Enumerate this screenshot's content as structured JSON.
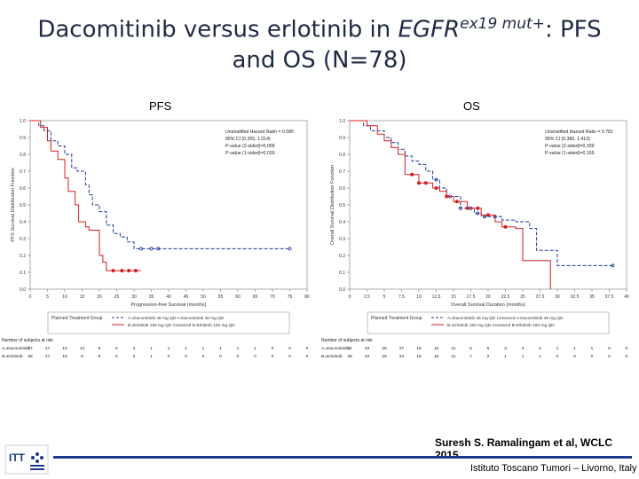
{
  "slide": {
    "title_part1": "Dacomitinib versus erlotinib in ",
    "title_gene": "EGFR",
    "title_sup": "ex19 mut+",
    "title_part2": ": PFS",
    "title_line2": "and OS (N=78)",
    "citation": "Suresh S. Ramalingam et al, WCLC 2015",
    "footer": "Istituto Toscano Tumori – Livorno, Italy",
    "colors": {
      "title": "#1f2a44",
      "dacomitinib": "#1f3a9a",
      "erlotinib": "#d42020",
      "footer_line": "#1f3a8a"
    }
  },
  "chart_data": [
    {
      "type": "line",
      "panel_label": "PFS",
      "title": "PFS",
      "xlabel": "Progression-free Survival (months)",
      "ylabel": "PFS Survival Distribution Function",
      "xlim": [
        0,
        80
      ],
      "ylim": [
        0,
        1.0
      ],
      "xticks": [
        "0",
        "5",
        "10",
        "15",
        "20",
        "25",
        "30",
        "35",
        "40",
        "45",
        "50",
        "55",
        "60",
        "65",
        "70",
        "75",
        "80"
      ],
      "yticks": [
        "0.0",
        "0.1",
        "0.2",
        "0.3",
        "0.4",
        "0.5",
        "0.6",
        "0.7",
        "0.8",
        "0.9",
        "1.0"
      ],
      "stats": [
        "Unstratified Hazard Ratio = 0.585",
        "95% CI (0.355, 1.014)",
        "P-value (2-sided)=0.058",
        "P-value (1-sided)=0.029"
      ],
      "legend_title": "Planned Treatment Group",
      "legend_lines": [
        "A=Dacomitinib 45 mg QD    A-Dacomitinib 45 mg QD",
        "B=Erlotinib 150 mg QD    Censored B-Erlotinib 150 mg QD"
      ],
      "risk_title": "Number of subjects at risk",
      "series": [
        {
          "name": "A=Dacomitinib",
          "style": "dashed",
          "x": [
            0,
            2.5,
            4,
            6,
            8,
            10,
            12,
            13.5,
            16,
            17,
            18,
            20,
            22,
            24,
            26,
            28,
            30,
            32,
            75
          ],
          "y": [
            1.0,
            0.97,
            0.94,
            0.88,
            0.85,
            0.8,
            0.72,
            0.7,
            0.62,
            0.56,
            0.5,
            0.46,
            0.38,
            0.33,
            0.31,
            0.28,
            0.24,
            0.24,
            0.24
          ],
          "censored_x": [
            32,
            35,
            37,
            75
          ],
          "risk": [
            "37",
            "27",
            "10",
            "14",
            "9",
            "5",
            "3",
            "1",
            "1",
            "1",
            "1",
            "1",
            "1",
            "1",
            "0",
            "0",
            "0"
          ]
        },
        {
          "name": "B=Erlotinib",
          "style": "solid",
          "x": [
            0,
            3,
            5,
            6,
            8,
            10,
            11,
            13,
            14,
            16,
            17,
            20,
            21,
            22,
            32
          ],
          "y": [
            1.0,
            0.96,
            0.88,
            0.82,
            0.77,
            0.66,
            0.58,
            0.5,
            0.4,
            0.37,
            0.35,
            0.2,
            0.16,
            0.11,
            0.11
          ],
          "censored_x": [
            24,
            26.5,
            28.5,
            30.5
          ],
          "risk": [
            "38",
            "27",
            "18",
            "9",
            "9",
            "5",
            "2",
            "1",
            "0",
            "0",
            "0",
            "0",
            "0",
            "0",
            "0",
            "0",
            "0"
          ]
        }
      ]
    },
    {
      "type": "line",
      "panel_label": "OS",
      "title": "OS",
      "xlabel": "Overall Survival Duration (months)",
      "ylabel": "Overall Survival Distribution Function",
      "xlim": [
        0,
        40
      ],
      "ylim": [
        0,
        1.0
      ],
      "xticks": [
        "0",
        "2.5",
        "5",
        "7.5",
        "10",
        "12.5",
        "15",
        "17.5",
        "20",
        "22.5",
        "25",
        "27.5",
        "30",
        "32.5",
        "35",
        "37.5",
        "40"
      ],
      "yticks": [
        "0.0",
        "0.1",
        "0.2",
        "0.3",
        "0.4",
        "0.5",
        "0.6",
        "0.7",
        "0.8",
        "0.9",
        "1.0"
      ],
      "stats": [
        "Unstratified Hazard Ratio = 0.781",
        "95% CI (0.386, 1.413)",
        "P-value (2-sided)=0.339",
        "P-value (1-sided)=0.169"
      ],
      "legend_title": "Planned Treatment Group",
      "legend_lines": [
        "A=Dacomitinib 45 mg QD    Censored A-Dacomitinib 45 mg QD",
        "B=Erlotinib 150 mg QD    Censored B-Erlotinib 150 mg QD"
      ],
      "risk_title": "Number of subjects at risk",
      "series": [
        {
          "name": "A=Dacomitinib",
          "style": "dashed",
          "x": [
            0,
            2,
            3,
            5,
            6,
            7,
            8,
            9,
            10,
            11,
            12,
            13,
            14,
            16,
            18,
            19,
            22,
            24,
            26,
            27,
            30,
            31,
            38
          ],
          "y": [
            1.0,
            0.97,
            0.94,
            0.9,
            0.87,
            0.83,
            0.79,
            0.76,
            0.74,
            0.7,
            0.65,
            0.6,
            0.55,
            0.48,
            0.45,
            0.43,
            0.41,
            0.4,
            0.36,
            0.23,
            0.14,
            0.14,
            0.14
          ],
          "censored_x": [
            12.5,
            14.5,
            16,
            17.5,
            18.5,
            19.5,
            21,
            38
          ],
          "risk": [
            "32",
            "33",
            "29",
            "27",
            "18",
            "15",
            "11",
            "5",
            "5",
            "3",
            "3",
            "2",
            "1",
            "1",
            "1",
            "0",
            "0"
          ]
        },
        {
          "name": "B=Erlotinib",
          "style": "solid",
          "x": [
            0,
            2.5,
            4,
            5,
            6,
            7,
            8,
            10,
            12,
            13,
            14,
            15,
            17,
            19,
            21,
            22,
            23,
            24,
            25,
            26,
            27,
            28,
            29
          ],
          "y": [
            1.0,
            0.97,
            0.92,
            0.88,
            0.84,
            0.8,
            0.68,
            0.63,
            0.6,
            0.58,
            0.55,
            0.52,
            0.48,
            0.44,
            0.4,
            0.37,
            0.37,
            0.36,
            0.17,
            0.17,
            0.17,
            0.17,
            0.0
          ],
          "censored_x": [
            9,
            10,
            11,
            12.5,
            14,
            15.5,
            17,
            18.5,
            20,
            22.5
          ],
          "risk": [
            "38",
            "34",
            "29",
            "24",
            "18",
            "15",
            "11",
            "7",
            "2",
            "1",
            "1",
            "1",
            "0",
            "0",
            "0",
            "0",
            "0"
          ]
        }
      ]
    }
  ]
}
